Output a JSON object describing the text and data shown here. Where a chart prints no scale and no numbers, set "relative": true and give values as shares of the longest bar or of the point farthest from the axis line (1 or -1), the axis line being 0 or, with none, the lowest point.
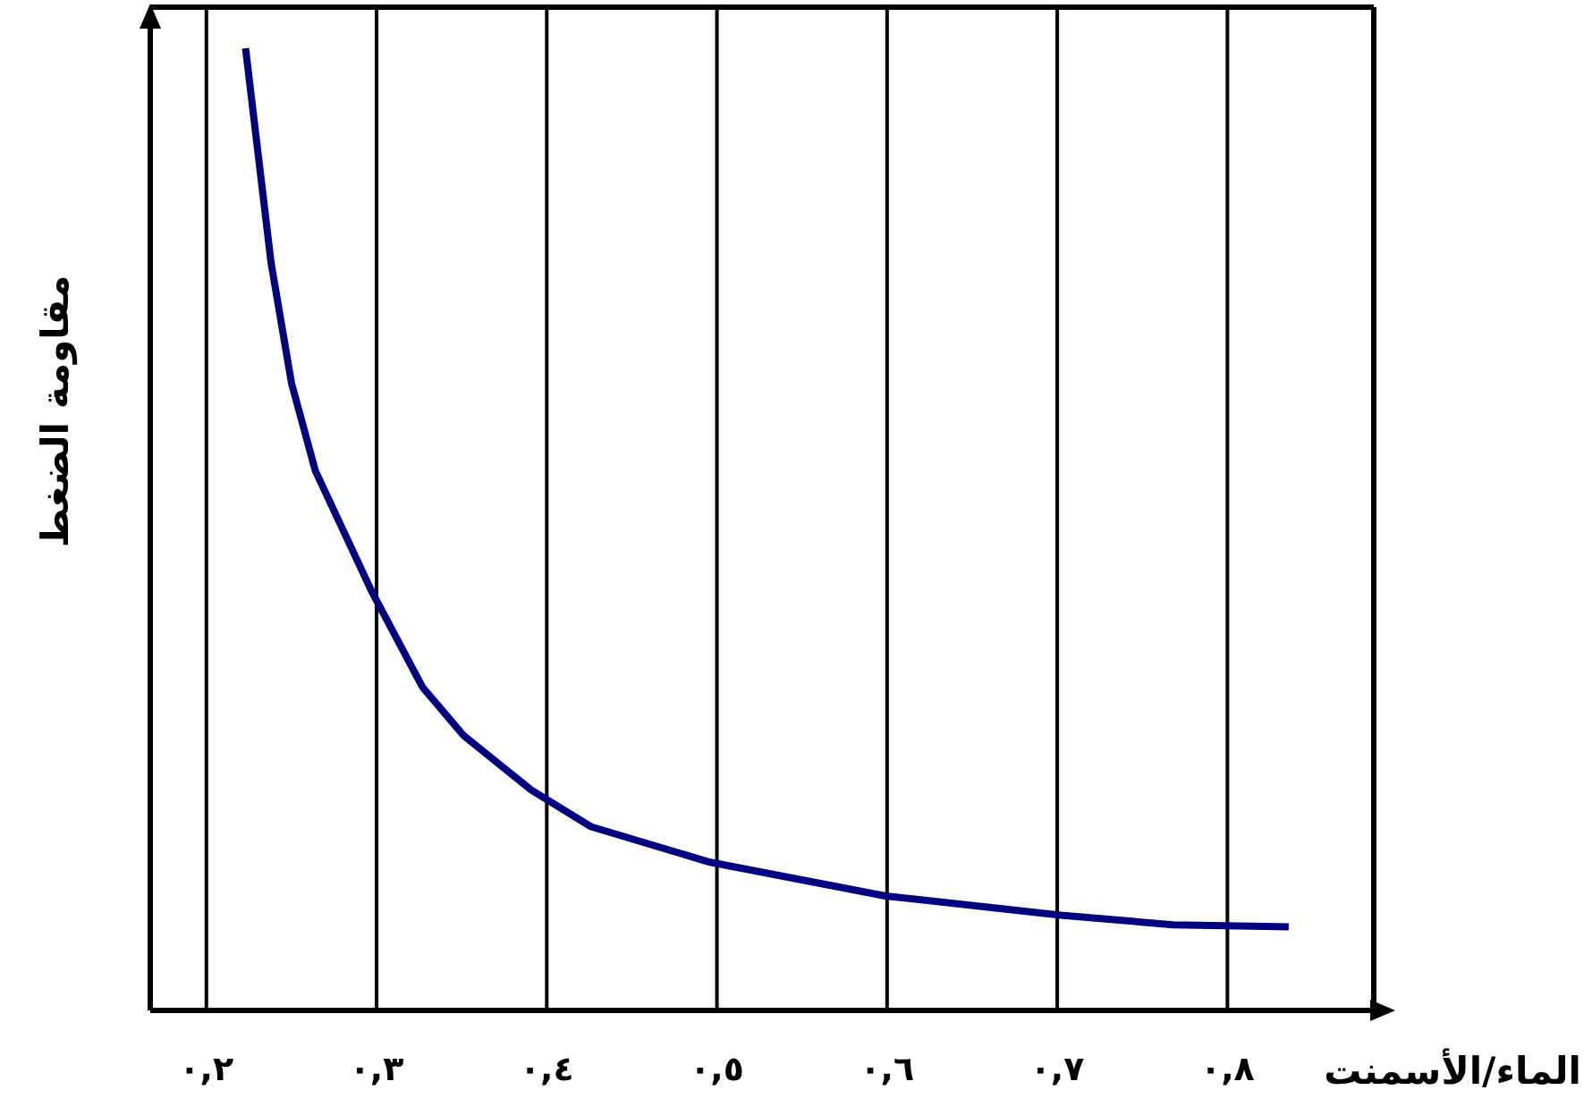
{
  "chart_data": {
    "type": "line",
    "xlabel": "الماء/الأسمنت",
    "ylabel": "مقاومة الضغط",
    "relative": true,
    "grid": "x",
    "marker": "none",
    "line_style": "solid",
    "xlim": [
      0.167,
      0.886
    ],
    "xticks": [
      {
        "value": 0.2,
        "label": "٠,٢"
      },
      {
        "value": 0.3,
        "label": "٠,٣"
      },
      {
        "value": 0.4,
        "label": "٠,٤"
      },
      {
        "value": 0.5,
        "label": "٠,٥"
      },
      {
        "value": 0.6,
        "label": "٠,٦"
      },
      {
        "value": 0.7,
        "label": "٠,٧"
      },
      {
        "value": 0.8,
        "label": "٠,٨"
      }
    ],
    "series": [
      {
        "color": "#000080",
        "x": [
          0.223,
          0.238,
          0.25,
          0.264,
          0.297,
          0.327,
          0.351,
          0.391,
          0.426,
          0.496,
          0.599,
          0.702,
          0.768,
          0.836
        ],
        "values": [
          1,
          0.777,
          0.652,
          0.561,
          0.436,
          0.336,
          0.286,
          0.229,
          0.191,
          0.154,
          0.119,
          0.099,
          0.089,
          0.087
        ]
      }
    ]
  }
}
